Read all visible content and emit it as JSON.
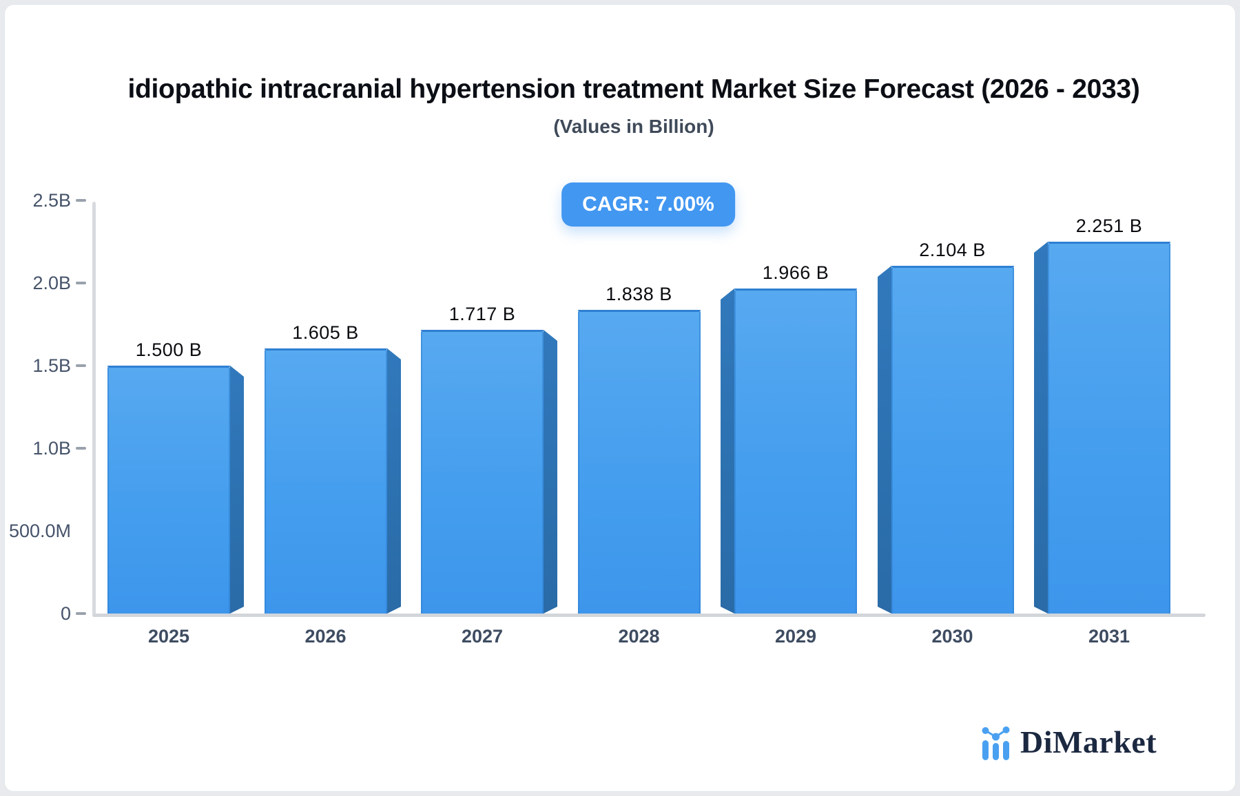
{
  "header": {
    "title": "idiopathic intracranial hypertension treatment Market Size Forecast (2026 - 2033)",
    "subtitle": "(Values in Billion)",
    "cagr_badge": "CAGR: 7.00%"
  },
  "brand": {
    "name": "DiMarket",
    "icon": "bar-line-chart-icon"
  },
  "colors": {
    "accent_blue": "#4297f1",
    "bar_face_top": "#57a9f0",
    "bar_face_bottom": "#3d96eb",
    "bar_edge": "#2e7fd2",
    "bar_side": "#2d72b2",
    "axis_line": "#d7dade",
    "axis_label": "#46536a",
    "year_label": "#3e4c61",
    "title_text": "#0b0e14",
    "brand_navy": "#1b2840",
    "brand_blue": "#4aa0f0"
  },
  "chart_data": {
    "type": "bar",
    "title": "idiopathic intracranial hypertension treatment Market Size Forecast (2026 - 2033)",
    "subtitle": "(Values in Billion)",
    "cagr": "7.00%",
    "categories": [
      "2025",
      "2026",
      "2027",
      "2028",
      "2029",
      "2030",
      "2031"
    ],
    "values": [
      1.5,
      1.605,
      1.717,
      1.838,
      1.966,
      2.104,
      2.251
    ],
    "value_labels": [
      "1.500 B",
      "1.605 B",
      "1.717 B",
      "1.838 B",
      "1.966 B",
      "2.104 B",
      "2.251 B"
    ],
    "unit": "Billion",
    "ylim": [
      0,
      2.5
    ],
    "yticks": [
      {
        "label": "2.5B",
        "value": 2.5,
        "dash": true
      },
      {
        "label": "2.0B",
        "value": 2.0,
        "dash": true
      },
      {
        "label": "1.5B",
        "value": 1.5,
        "dash": true
      },
      {
        "label": "1.0B",
        "value": 1.0,
        "dash": true
      },
      {
        "label": "500.0M",
        "value": 0.5,
        "dash": false
      },
      {
        "label": "0",
        "value": 0,
        "dash": true
      }
    ],
    "grid": false,
    "legend": false,
    "bar_style": "3d-bevel"
  }
}
